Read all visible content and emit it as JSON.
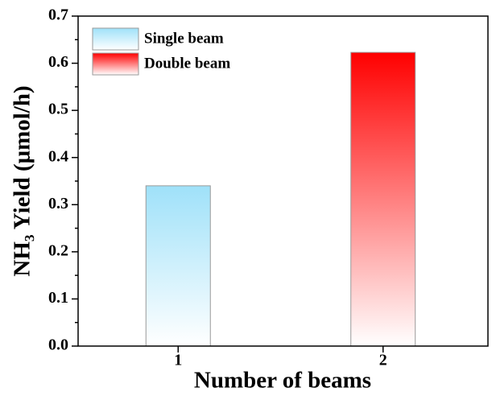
{
  "chart_data": {
    "type": "bar",
    "xlabel": "Number of beams",
    "ylabel": "NH₃ Yield (μmol/h)",
    "categories": [
      "1",
      "2"
    ],
    "series": [
      {
        "name": "Single beam",
        "color": "#9fe1f9",
        "values": [
          0.34,
          null
        ]
      },
      {
        "name": "Double beam",
        "color": "#ff0000",
        "values": [
          null,
          0.623
        ]
      }
    ],
    "ylim": [
      0,
      0.7
    ],
    "yticks": [
      {
        "value": 0,
        "label": "0.0"
      },
      0.1,
      0.2,
      0.3,
      0.4,
      0.5,
      0.6,
      0.7
    ],
    "legend": "upper-left"
  }
}
